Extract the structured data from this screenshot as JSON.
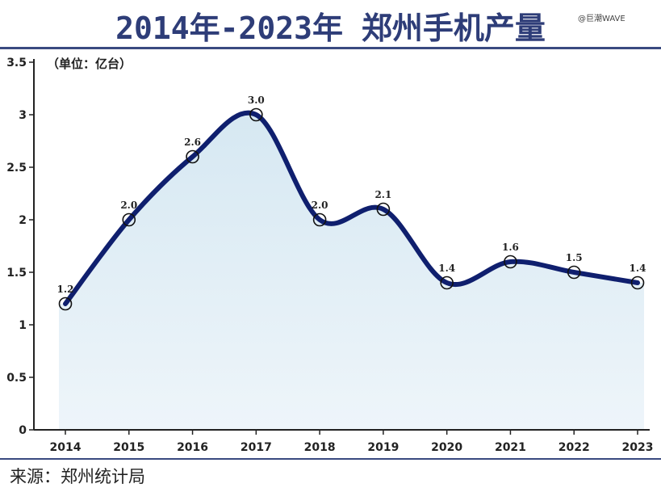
{
  "header": {
    "title": "2014年-2023年 郑州手机产量",
    "watermark": "@巨潮WAVE"
  },
  "footer": {
    "source": "来源：郑州统计局"
  },
  "chart_data": {
    "type": "line",
    "categories": [
      "2014",
      "2015",
      "2016",
      "2017",
      "2018",
      "2019",
      "2020",
      "2021",
      "2022",
      "2023"
    ],
    "values": [
      1.2,
      2.0,
      2.6,
      3.0,
      2.0,
      2.1,
      1.4,
      1.6,
      1.5,
      1.4
    ],
    "data_labels": [
      "1.2",
      "2.0",
      "2.6",
      "3.0",
      "2.0",
      "2.1",
      "1.4",
      "1.6",
      "1.5",
      "1.4"
    ],
    "unit_label": "（单位：亿台）",
    "ylim": [
      0,
      3.5
    ],
    "yticks": [
      "0",
      "0.5",
      "1",
      "1.5",
      "2",
      "2.5",
      "3",
      "3.5"
    ],
    "grid": false,
    "colors": {
      "line": "#0f1f6e",
      "area": "#dcebf4",
      "axis": "#222222",
      "title": "#2e3d78"
    }
  }
}
